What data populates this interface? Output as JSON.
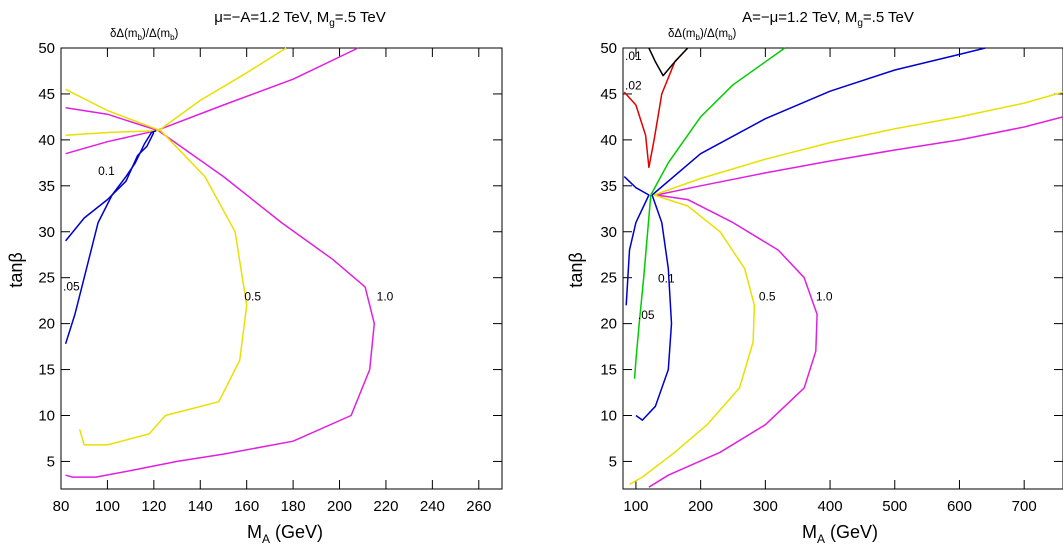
{
  "chart_data": [
    {
      "type": "contour",
      "title": "μ=−A=1.2 TeV, M",
      "title_sub": "g",
      "title_tail": "=.5 TeV",
      "quantity_label": "δΔ(m",
      "quantity_sub": "b",
      "quantity_mid": ")/Δ(m",
      "quantity_sub2": "b",
      "quantity_tail": ")",
      "xlabel": "M",
      "xlabel_sub": "A",
      "xlabel_tail": " (GeV)",
      "ylabel": "tanβ",
      "xlim": [
        80,
        270
      ],
      "ylim": [
        2,
        50
      ],
      "xticks": [
        80,
        100,
        120,
        140,
        160,
        180,
        200,
        220,
        240,
        260
      ],
      "yticks": [
        5,
        10,
        15,
        20,
        25,
        30,
        35,
        40,
        45,
        50
      ],
      "contours": [
        {
          "level_label": "1.0",
          "color": "#e020e0",
          "label_at": [
            216,
            22.5
          ],
          "lines": [
            [
              [
                82,
                38.5
              ],
              [
                100,
                39.8
              ],
              [
                121,
                41.0
              ],
              [
                150,
                43.8
              ],
              [
                180,
                46.6
              ],
              [
                208,
                50
              ]
            ],
            [
              [
                82,
                43.5
              ],
              [
                100,
                42.8
              ],
              [
                122,
                41.0
              ],
              [
                150,
                36.0
              ],
              [
                175,
                31.0
              ],
              [
                197,
                27.0
              ],
              [
                211,
                24.0
              ],
              [
                215,
                20.0
              ],
              [
                213,
                15.0
              ],
              [
                205,
                10.0
              ],
              [
                180,
                7.2
              ],
              [
                150,
                5.8
              ],
              [
                130,
                5.0
              ],
              [
                110,
                4.0
              ],
              [
                95,
                3.3
              ],
              [
                85,
                3.3
              ],
              [
                82,
                3.5
              ]
            ]
          ]
        },
        {
          "level_label": "0.5",
          "color": "#e8e000",
          "label_at": [
            159,
            22.5
          ],
          "lines": [
            [
              [
                82,
                40.5
              ],
              [
                100,
                40.8
              ],
              [
                122,
                41.0
              ],
              [
                140,
                44.3
              ],
              [
                160,
                47.3
              ],
              [
                177,
                50
              ]
            ],
            [
              [
                82,
                45.5
              ],
              [
                100,
                43.2
              ],
              [
                123,
                41.0
              ],
              [
                142,
                36.0
              ],
              [
                155,
                30.0
              ],
              [
                160,
                22.0
              ],
              [
                157,
                16.0
              ],
              [
                148,
                11.5
              ],
              [
                125,
                10.0
              ],
              [
                118,
                8.0
              ],
              [
                100,
                6.8
              ],
              [
                90,
                6.8
              ],
              [
                88,
                8.5
              ]
            ]
          ]
        },
        {
          "level_label": "0.1",
          "color": "#0000cc",
          "label_at": [
            96,
            36.2
          ],
          "lines": [
            [
              [
                82,
                17.8
              ],
              [
                86,
                21.0
              ],
              [
                90,
                25.0
              ],
              [
                96,
                31.0
              ],
              [
                102,
                34.0
              ],
              [
                108,
                36.0
              ],
              [
                112,
                37.5
              ],
              [
                116,
                39.6
              ],
              [
                119,
                40.8
              ],
              [
                121,
                41.0
              ]
            ],
            [
              [
                82,
                29.0
              ],
              [
                90,
                31.5
              ],
              [
                100,
                33.5
              ],
              [
                108,
                35.5
              ],
              [
                113,
                38.3
              ],
              [
                117,
                39.3
              ],
              [
                120,
                40.8
              ]
            ]
          ]
        },
        {
          "level_label": ".05",
          "color": "#00cc00",
          "label_at": [
            80,
            23.6
          ],
          "lines": []
        }
      ]
    },
    {
      "type": "contour",
      "title": "A=−μ=1.2 TeV, M",
      "title_sub": "g",
      "title_tail": "=.5 TeV",
      "quantity_label": "δΔ(m",
      "quantity_sub": "b",
      "quantity_mid": ")/Δ(m",
      "quantity_sub2": "b",
      "quantity_tail": ")",
      "xlabel": "M",
      "xlabel_sub": "A",
      "xlabel_tail": " (GeV)",
      "ylabel": "tanβ",
      "xlim": [
        80,
        760
      ],
      "ylim": [
        2,
        50
      ],
      "xticks": [
        100,
        200,
        300,
        400,
        500,
        600,
        700
      ],
      "yticks": [
        5,
        10,
        15,
        20,
        25,
        30,
        35,
        40,
        45,
        50
      ],
      "contours": [
        {
          "level_label": "1.0",
          "color": "#e020e0",
          "label_at": [
            378,
            22.5
          ],
          "lines": [
            [
              [
                132,
                34.0
              ],
              [
                200,
                35.0
              ],
              [
                300,
                36.4
              ],
              [
                400,
                37.7
              ],
              [
                500,
                38.9
              ],
              [
                600,
                40.0
              ],
              [
                700,
                41.4
              ],
              [
                760,
                42.5
              ]
            ],
            [
              [
                132,
                34.0
              ],
              [
                180,
                33.5
              ],
              [
                250,
                31.0
              ],
              [
                320,
                28.0
              ],
              [
                360,
                25.0
              ],
              [
                380,
                21.0
              ],
              [
                378,
                17.0
              ],
              [
                360,
                13.0
              ],
              [
                300,
                9.0
              ],
              [
                230,
                6.0
              ],
              [
                150,
                3.5
              ],
              [
                120,
                2.2
              ]
            ]
          ]
        },
        {
          "level_label": "0.5",
          "color": "#e8e000",
          "label_at": [
            290,
            22.5
          ],
          "lines": [
            [
              [
                128,
                34.0
              ],
              [
                200,
                35.8
              ],
              [
                300,
                37.9
              ],
              [
                400,
                39.7
              ],
              [
                500,
                41.2
              ],
              [
                600,
                42.5
              ],
              [
                700,
                44.0
              ],
              [
                760,
                45.2
              ]
            ],
            [
              [
                128,
                34.0
              ],
              [
                180,
                32.8
              ],
              [
                230,
                30.0
              ],
              [
                268,
                26.0
              ],
              [
                283,
                22.0
              ],
              [
                281,
                18.0
              ],
              [
                260,
                13.0
              ],
              [
                210,
                9.0
              ],
              [
                160,
                6.0
              ],
              [
                110,
                3.3
              ],
              [
                90,
                2.5
              ]
            ]
          ]
        },
        {
          "level_label": "0.1",
          "color": "#0000cc",
          "label_at": [
            134,
            24.5
          ],
          "lines": [
            [
              [
                125,
                34.0
              ],
              [
                200,
                38.5
              ],
              [
                300,
                42.3
              ],
              [
                400,
                45.3
              ],
              [
                500,
                47.6
              ],
              [
                600,
                49.3
              ],
              [
                640,
                50.0
              ]
            ],
            [
              [
                125,
                34.0
              ],
              [
                140,
                31.0
              ],
              [
                150,
                26.0
              ],
              [
                155,
                20.0
              ],
              [
                150,
                15.0
              ],
              [
                130,
                11.0
              ],
              [
                110,
                9.5
              ],
              [
                100,
                10.0
              ]
            ],
            [
              [
                82,
                36.0
              ],
              [
                100,
                34.8
              ],
              [
                120,
                34.0
              ],
              [
                100,
                31.0
              ],
              [
                90,
                28.0
              ],
              [
                85,
                22.0
              ]
            ]
          ]
        },
        {
          "level_label": ".05",
          "color": "#00cc00",
          "label_at": [
            103,
            20.5
          ],
          "lines": [
            [
              [
                123,
                34.0
              ],
              [
                150,
                37.5
              ],
              [
                200,
                42.5
              ],
              [
                250,
                46.0
              ],
              [
                300,
                48.5
              ],
              [
                330,
                50.0
              ]
            ],
            [
              [
                123,
                34.0
              ],
              [
                112,
                25.0
              ],
              [
                105,
                20.0
              ],
              [
                100,
                16.0
              ],
              [
                98,
                14.0
              ]
            ]
          ]
        },
        {
          "level_label": ".02",
          "color": "#e00000",
          "label_at": [
            82,
            45.5
          ],
          "lines": [
            [
              [
                82,
                45.2
              ],
              [
                100,
                43.8
              ],
              [
                115,
                40.5
              ],
              [
                120,
                37.0
              ],
              [
                128,
                40.0
              ],
              [
                140,
                45.0
              ],
              [
                160,
                48.5
              ],
              [
                180,
                50.0
              ]
            ]
          ]
        },
        {
          "level_label": ".01",
          "color": "#000000",
          "label_at": [
            82,
            50.5
          ],
          "lines": [
            [
              [
                120,
                50.0
              ],
              [
                130,
                48.5
              ],
              [
                142,
                47.0
              ],
              [
                160,
                48.5
              ],
              [
                180,
                50.0
              ]
            ]
          ]
        }
      ]
    }
  ]
}
